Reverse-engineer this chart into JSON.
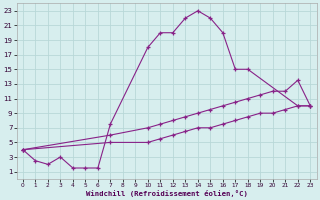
{
  "bg_color": "#d7eeee",
  "grid_color": "#b8d8d8",
  "line_color": "#882288",
  "xlabel": "Windchill (Refroidissement éolien,°C)",
  "xlim": [
    -0.5,
    23.5
  ],
  "ylim": [
    0,
    24
  ],
  "xticks": [
    0,
    1,
    2,
    3,
    4,
    5,
    6,
    7,
    8,
    9,
    10,
    11,
    12,
    13,
    14,
    15,
    16,
    17,
    18,
    19,
    20,
    21,
    22,
    23
  ],
  "yticks": [
    1,
    3,
    5,
    7,
    9,
    11,
    13,
    15,
    17,
    19,
    21,
    23
  ],
  "line1_x": [
    0,
    1,
    2,
    3,
    4,
    5,
    6,
    7,
    10,
    11,
    12,
    13,
    14,
    15,
    16,
    17,
    18,
    22,
    23
  ],
  "line1_y": [
    4,
    2.5,
    2,
    3,
    1.5,
    1.5,
    1.5,
    7.5,
    18,
    20,
    20,
    22,
    23,
    22,
    20,
    15,
    15,
    10,
    10
  ],
  "line2_x": [
    0,
    7,
    10,
    11,
    12,
    13,
    14,
    15,
    16,
    17,
    18,
    19,
    20,
    21,
    22,
    23
  ],
  "line2_y": [
    4,
    6,
    7,
    7.5,
    8,
    8.5,
    9,
    9.5,
    10,
    10.5,
    11,
    11.5,
    12,
    12,
    13.5,
    10
  ],
  "line3_x": [
    0,
    7,
    10,
    11,
    12,
    13,
    14,
    15,
    16,
    17,
    18,
    19,
    20,
    21,
    22,
    23
  ],
  "line3_y": [
    4,
    5,
    5,
    5.5,
    6,
    6.5,
    7,
    7,
    7.5,
    8,
    8.5,
    9,
    9,
    9.5,
    10,
    10
  ]
}
